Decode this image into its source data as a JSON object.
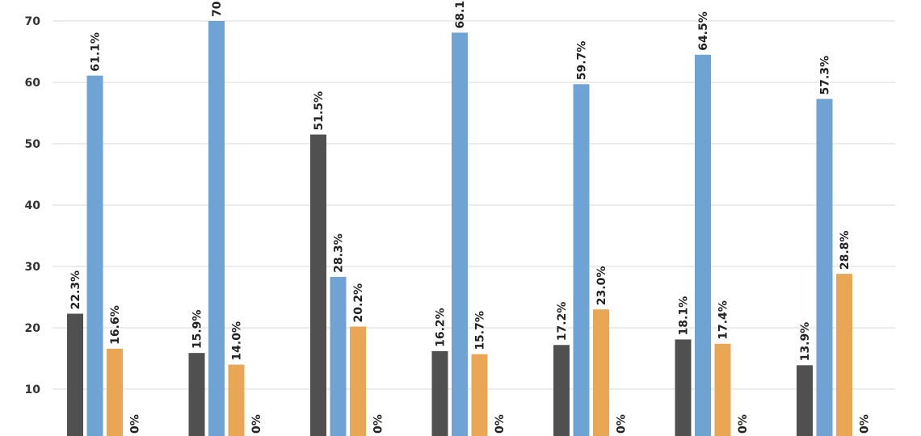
{
  "colors": {
    "series_dark": "#505050",
    "series_blue": "#6fa3d4",
    "series_orange": "#e9a755",
    "grid": "#d9d9d9",
    "background": "#ffffff"
  },
  "chart_data": {
    "type": "bar",
    "title": "",
    "xlabel": "",
    "ylabel": "",
    "ylim": [
      0,
      70
    ],
    "yticks": [
      10,
      20,
      30,
      40,
      50,
      60,
      70
    ],
    "grid": true,
    "categories": [
      "",
      "",
      "",
      "",
      "",
      "",
      ""
    ],
    "series": [
      {
        "values": [
          22.3,
          15.9,
          51.5,
          16.2,
          17.2,
          18.1,
          13.9
        ],
        "labels": [
          "22.3%",
          "15.9%",
          "51.5%",
          "16.2%",
          "17.2%",
          "18.1%",
          "13.9%"
        ]
      },
      {
        "values": [
          61.1,
          70,
          28.3,
          68.1,
          59.7,
          64.5,
          57.3
        ],
        "labels": [
          "61.1%",
          "70",
          "28.3%",
          "68.1",
          "59.7%",
          "64.5%",
          "57.3%"
        ]
      },
      {
        "values": [
          16.6,
          14.0,
          20.2,
          15.7,
          23.0,
          17.4,
          28.8
        ],
        "labels": [
          "16.6%",
          "14.0%",
          "20.2%",
          "15.7%",
          "23.0%",
          "17.4%",
          "28.8%"
        ]
      },
      {
        "values": [
          0,
          0,
          0,
          0,
          0,
          0,
          0
        ],
        "labels": [
          "0%",
          "0%",
          "0%",
          "0%",
          "0%",
          "0%",
          "0%"
        ]
      }
    ]
  }
}
